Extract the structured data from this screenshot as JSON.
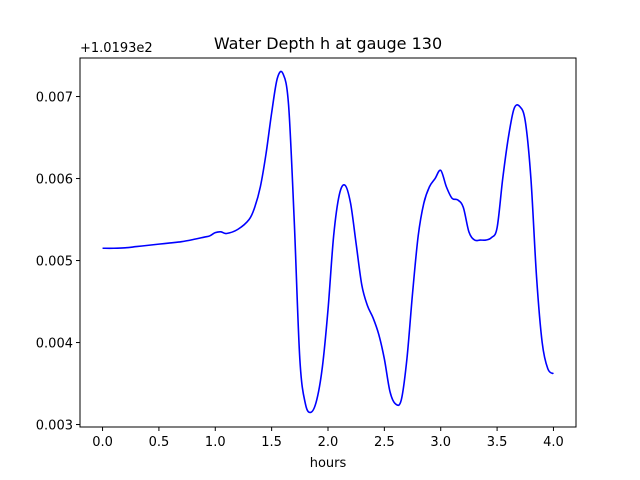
{
  "chart_data": {
    "type": "line",
    "title": "Water Depth h at gauge 130",
    "xlabel": "hours",
    "ylabel": "",
    "y_offset_label": "+1.0193e2",
    "xlim": [
      -0.2,
      4.2
    ],
    "ylim": [
      0.00297,
      0.00747
    ],
    "x_ticks": [
      0.0,
      0.5,
      1.0,
      1.5,
      2.0,
      2.5,
      3.0,
      3.5,
      4.0
    ],
    "x_tick_labels": [
      "0.0",
      "0.5",
      "1.0",
      "1.5",
      "2.0",
      "2.5",
      "3.0",
      "3.5",
      "4.0"
    ],
    "y_ticks": [
      0.003,
      0.004,
      0.005,
      0.006,
      0.007
    ],
    "y_tick_labels": [
      "0.003",
      "0.004",
      "0.005",
      "0.006",
      "0.007"
    ],
    "grid": false,
    "series": [
      {
        "color": "#0000ff",
        "x": [
          0.0,
          0.1,
          0.2,
          0.3,
          0.4,
          0.5,
          0.6,
          0.7,
          0.8,
          0.9,
          0.95,
          1.0,
          1.05,
          1.1,
          1.2,
          1.3,
          1.35,
          1.4,
          1.45,
          1.5,
          1.55,
          1.6,
          1.65,
          1.7,
          1.75,
          1.8,
          1.85,
          1.9,
          1.95,
          2.0,
          2.05,
          2.1,
          2.15,
          2.2,
          2.25,
          2.3,
          2.35,
          2.4,
          2.45,
          2.5,
          2.55,
          2.6,
          2.65,
          2.7,
          2.75,
          2.8,
          2.85,
          2.9,
          2.95,
          3.0,
          3.05,
          3.1,
          3.15,
          3.2,
          3.25,
          3.3,
          3.35,
          3.4,
          3.45,
          3.5,
          3.55,
          3.6,
          3.65,
          3.7,
          3.75,
          3.8,
          3.85,
          3.9,
          3.95,
          4.0
        ],
        "y": [
          0.00515,
          0.00515,
          0.005155,
          0.00517,
          0.005185,
          0.0052,
          0.005215,
          0.00523,
          0.005255,
          0.005285,
          0.0053,
          0.00534,
          0.00535,
          0.00533,
          0.00538,
          0.0055,
          0.00565,
          0.0059,
          0.0063,
          0.0068,
          0.00722,
          0.00728,
          0.0069,
          0.0055,
          0.0038,
          0.00325,
          0.00315,
          0.0033,
          0.0037,
          0.0044,
          0.0053,
          0.0058,
          0.00592,
          0.0057,
          0.0052,
          0.0047,
          0.00445,
          0.0043,
          0.0041,
          0.0038,
          0.0034,
          0.00325,
          0.0033,
          0.0038,
          0.0046,
          0.0053,
          0.0057,
          0.0059,
          0.006,
          0.0061,
          0.0059,
          0.00576,
          0.00574,
          0.00565,
          0.00535,
          0.00525,
          0.00525,
          0.00525,
          0.00528,
          0.0054,
          0.006,
          0.0065,
          0.00685,
          0.00688,
          0.0067,
          0.006,
          0.0048,
          0.004,
          0.00368,
          0.00362
        ]
      }
    ]
  }
}
